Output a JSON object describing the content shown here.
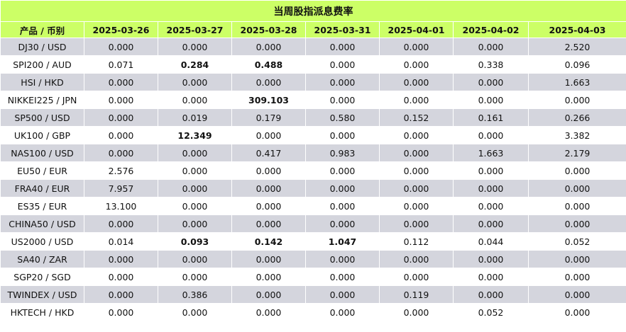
{
  "title": "当周股指派息费率",
  "header_product": "产品 / 币别",
  "dates": [
    "2025-03-26",
    "2025-03-27",
    "2025-03-28",
    "2025-03-31",
    "2025-04-01",
    "2025-04-02",
    "2025-04-03"
  ],
  "colors": {
    "header_bg": "#ccff66",
    "row_odd_bg": "#d4d5dd",
    "row_even_bg": "#ffffff"
  },
  "rows": [
    {
      "product": "DJ30 / USD",
      "values": [
        "0.000",
        "0.000",
        "0.000",
        "0.000",
        "0.000",
        "0.000",
        "2.520"
      ],
      "bold": []
    },
    {
      "product": "SPI200 / AUD",
      "values": [
        "0.071",
        "0.284",
        "0.488",
        "0.000",
        "0.000",
        "0.338",
        "0.096"
      ],
      "bold": [
        1,
        2
      ]
    },
    {
      "product": "HSI / HKD",
      "values": [
        "0.000",
        "0.000",
        "0.000",
        "0.000",
        "0.000",
        "0.000",
        "1.663"
      ],
      "bold": []
    },
    {
      "product": "NIKKEI225 / JPN",
      "values": [
        "0.000",
        "0.000",
        "309.103",
        "0.000",
        "0.000",
        "0.000",
        "0.000"
      ],
      "bold": [
        2
      ]
    },
    {
      "product": "SP500 / USD",
      "values": [
        "0.000",
        "0.019",
        "0.179",
        "0.580",
        "0.152",
        "0.161",
        "0.266"
      ],
      "bold": []
    },
    {
      "product": "UK100 / GBP",
      "values": [
        "0.000",
        "12.349",
        "0.000",
        "0.000",
        "0.000",
        "0.000",
        "3.382"
      ],
      "bold": [
        1
      ]
    },
    {
      "product": "NAS100 / USD",
      "values": [
        "0.000",
        "0.000",
        "0.417",
        "0.983",
        "0.000",
        "1.663",
        "2.179"
      ],
      "bold": []
    },
    {
      "product": "EU50 / EUR",
      "values": [
        "2.576",
        "0.000",
        "0.000",
        "0.000",
        "0.000",
        "0.000",
        "0.000"
      ],
      "bold": []
    },
    {
      "product": "FRA40 / EUR",
      "values": [
        "7.957",
        "0.000",
        "0.000",
        "0.000",
        "0.000",
        "0.000",
        "0.000"
      ],
      "bold": []
    },
    {
      "product": "ES35 / EUR",
      "values": [
        "13.100",
        "0.000",
        "0.000",
        "0.000",
        "0.000",
        "0.000",
        "0.000"
      ],
      "bold": []
    },
    {
      "product": "CHINA50 / USD",
      "values": [
        "0.000",
        "0.000",
        "0.000",
        "0.000",
        "0.000",
        "0.000",
        "0.000"
      ],
      "bold": []
    },
    {
      "product": "US2000 / USD",
      "values": [
        "0.014",
        "0.093",
        "0.142",
        "1.047",
        "0.112",
        "0.044",
        "0.052"
      ],
      "bold": [
        1,
        2,
        3
      ]
    },
    {
      "product": "SA40 / ZAR",
      "values": [
        "0.000",
        "0.000",
        "0.000",
        "0.000",
        "0.000",
        "0.000",
        "0.000"
      ],
      "bold": []
    },
    {
      "product": "SGP20 / SGD",
      "values": [
        "0.000",
        "0.000",
        "0.000",
        "0.000",
        "0.000",
        "0.000",
        "0.000"
      ],
      "bold": []
    },
    {
      "product": "TWINDEX / USD",
      "values": [
        "0.000",
        "0.386",
        "0.000",
        "0.000",
        "0.119",
        "0.000",
        "0.000"
      ],
      "bold": []
    },
    {
      "product": "HKTECH / HKD",
      "values": [
        "0.000",
        "0.000",
        "0.000",
        "0.000",
        "0.000",
        "0.052",
        "0.000"
      ],
      "bold": []
    }
  ]
}
